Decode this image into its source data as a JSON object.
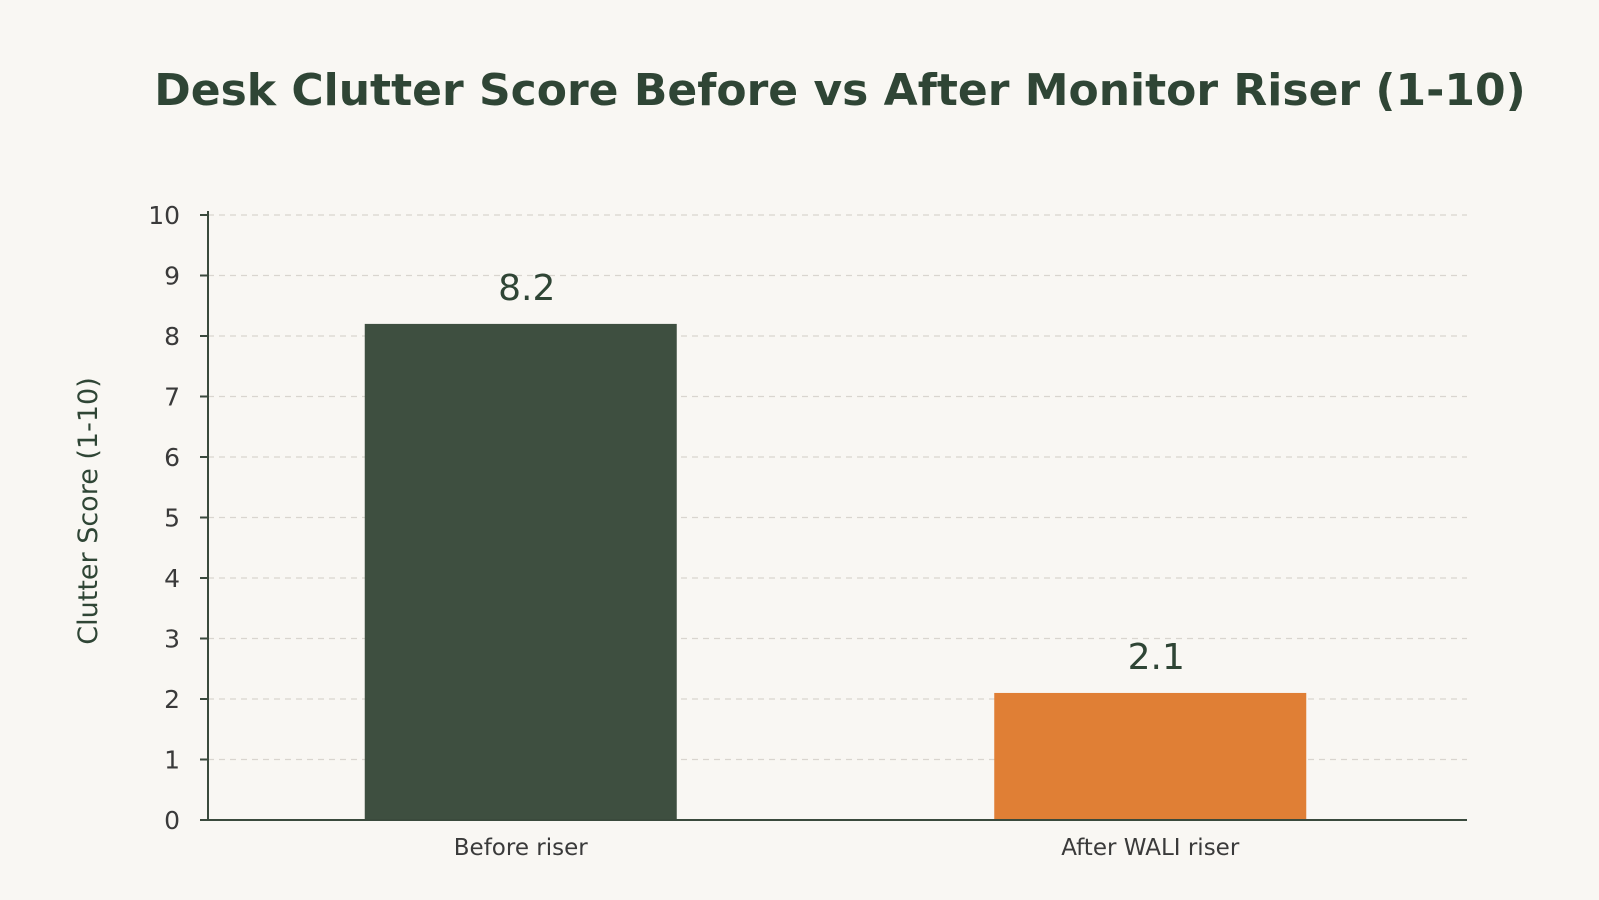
{
  "chart_data": {
    "type": "bar",
    "title": "Desk Clutter Score Before vs After Monitor Riser (1-10)",
    "xlabel": "",
    "ylabel": "Clutter Score (1-10)",
    "categories": [
      "Before riser",
      "After WALI riser"
    ],
    "values": [
      8.2,
      2.1
    ],
    "data_labels": [
      "8.2",
      "2.1"
    ],
    "ylim": [
      0,
      10
    ],
    "yticks": [
      0,
      1,
      2,
      3,
      4,
      5,
      6,
      7,
      8,
      9,
      10
    ],
    "grid": true,
    "legend": "none",
    "colors": {
      "bars": [
        "#3e4f40",
        "#e07f35"
      ],
      "title": "#2f4535",
      "text": "#3a3a3a",
      "axis": "#3a4a3c",
      "grid": "#d9d5cf",
      "background": "#f9f7f3"
    }
  }
}
